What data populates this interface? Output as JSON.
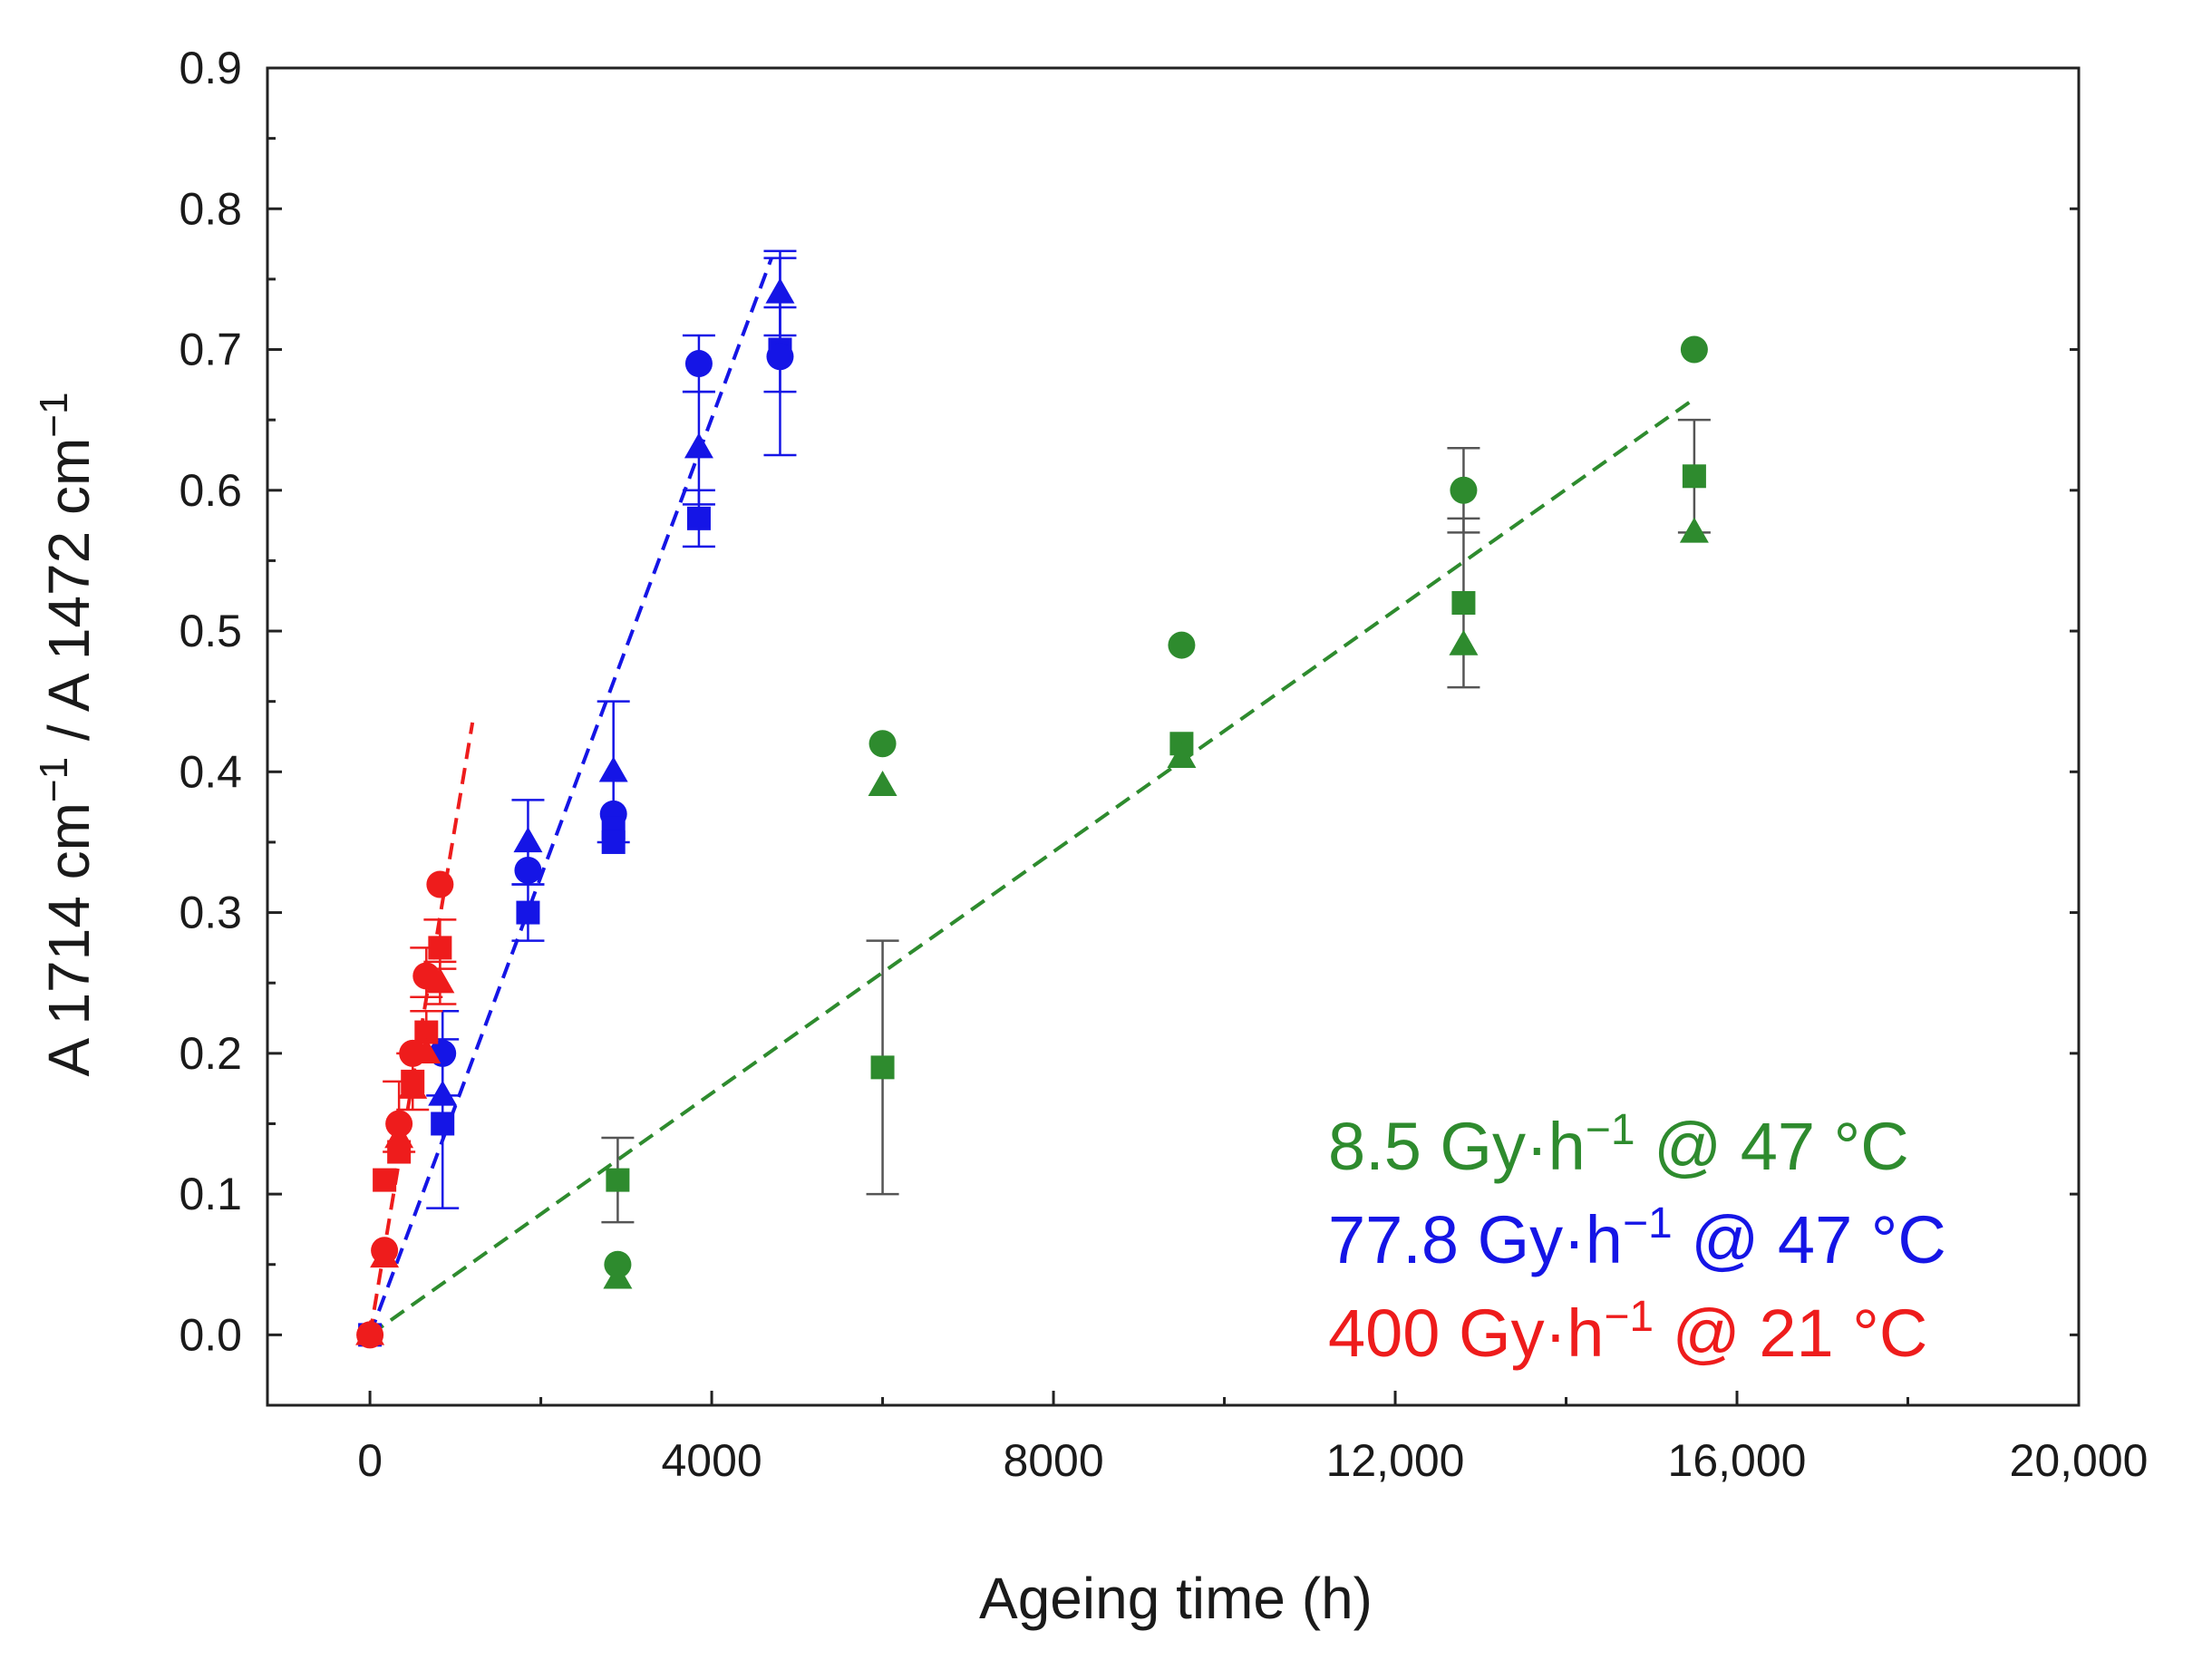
{
  "chart_data": {
    "type": "scatter",
    "xlabel": "Ageing time (h)",
    "ylabel_parts": [
      "A 1714 cm",
      "−1",
      " / A 1472 cm",
      "−1"
    ],
    "xlim": [
      -1200,
      20000
    ],
    "ylim": [
      -0.05,
      0.9
    ],
    "x_ticks": [
      0,
      4000,
      8000,
      12000,
      16000,
      20000
    ],
    "x_tick_labels": [
      "0",
      "4000",
      "8000",
      "12,000",
      "16,000",
      "20,000"
    ],
    "y_ticks": [
      0.0,
      0.1,
      0.2,
      0.3,
      0.4,
      0.5,
      0.6,
      0.7,
      0.8,
      0.9
    ],
    "y_tick_labels": [
      "0.0",
      "0.1",
      "0.2",
      "0.3",
      "0.4",
      "0.5",
      "0.6",
      "0.7",
      "0.8",
      "0.9"
    ],
    "grid": false,
    "legend_position": "bottom-right",
    "series": [
      {
        "name_parts": [
          "8.5 Gy·h",
          "−1",
          " @ 47 °C"
        ],
        "color": "#2e8b2e",
        "trend": [
          [
            0,
            0.0
          ],
          [
            15500,
            0.665
          ]
        ],
        "points": [
          {
            "x": 2900,
            "y": 0.11,
            "marker": "square",
            "err": [
              0.08,
              0.14
            ]
          },
          {
            "x": 2900,
            "y": 0.05,
            "marker": "circle"
          },
          {
            "x": 2900,
            "y": 0.04,
            "marker": "triangle"
          },
          {
            "x": 6000,
            "y": 0.42,
            "marker": "circle"
          },
          {
            "x": 6000,
            "y": 0.39,
            "marker": "triangle"
          },
          {
            "x": 6000,
            "y": 0.19,
            "marker": "square",
            "err": [
              0.1,
              0.28
            ]
          },
          {
            "x": 9500,
            "y": 0.49,
            "marker": "circle"
          },
          {
            "x": 9500,
            "y": 0.42,
            "marker": "square"
          },
          {
            "x": 9500,
            "y": 0.41,
            "marker": "triangle"
          },
          {
            "x": 12800,
            "y": 0.6,
            "marker": "circle",
            "err": [
              0.57,
              0.63
            ]
          },
          {
            "x": 12800,
            "y": 0.52,
            "marker": "square",
            "err": [
              0.46,
              0.58
            ]
          },
          {
            "x": 12800,
            "y": 0.49,
            "marker": "triangle"
          },
          {
            "x": 15500,
            "y": 0.7,
            "marker": "circle"
          },
          {
            "x": 15500,
            "y": 0.61,
            "marker": "square",
            "err": [
              0.57,
              0.65
            ]
          },
          {
            "x": 15500,
            "y": 0.57,
            "marker": "triangle"
          }
        ]
      },
      {
        "name_parts": [
          "77.8 Gy·h",
          "−1",
          " @ 47 °C"
        ],
        "color": "#1515e6",
        "trend": [
          [
            0,
            0.0
          ],
          [
            4700,
            0.765
          ]
        ],
        "points": [
          {
            "x": 0,
            "y": 0.0,
            "marker": "square"
          },
          {
            "x": 850,
            "y": 0.2,
            "marker": "circle",
            "err": [
              0.17,
              0.23
            ]
          },
          {
            "x": 850,
            "y": 0.17,
            "marker": "triangle"
          },
          {
            "x": 850,
            "y": 0.15,
            "marker": "square",
            "err": [
              0.09,
              0.21
            ]
          },
          {
            "x": 1850,
            "y": 0.35,
            "marker": "triangle",
            "err": [
              0.32,
              0.38
            ]
          },
          {
            "x": 1850,
            "y": 0.33,
            "marker": "circle"
          },
          {
            "x": 1850,
            "y": 0.3,
            "marker": "square",
            "err": [
              0.28,
              0.32
            ]
          },
          {
            "x": 2850,
            "y": 0.4,
            "marker": "triangle",
            "err": [
              0.35,
              0.45
            ]
          },
          {
            "x": 2850,
            "y": 0.37,
            "marker": "circle"
          },
          {
            "x": 2850,
            "y": 0.36,
            "marker": "square"
          },
          {
            "x": 2850,
            "y": 0.35,
            "marker": "square"
          },
          {
            "x": 3850,
            "y": 0.69,
            "marker": "circle",
            "err": [
              0.67,
              0.71
            ]
          },
          {
            "x": 3850,
            "y": 0.63,
            "marker": "triangle",
            "err": [
              0.59,
              0.67
            ]
          },
          {
            "x": 3850,
            "y": 0.58,
            "marker": "square",
            "err": [
              0.56,
              0.6
            ]
          },
          {
            "x": 4800,
            "y": 0.74,
            "marker": "triangle",
            "err": [
              0.71,
              0.77
            ]
          },
          {
            "x": 4800,
            "y": 0.7,
            "marker": "square",
            "err": [
              0.67,
              0.73
            ]
          },
          {
            "x": 4800,
            "y": 0.695,
            "marker": "circle",
            "err": [
              0.625,
              0.765
            ]
          }
        ]
      },
      {
        "name_parts": [
          "400 Gy·h",
          "−1",
          " @ 21 °C"
        ],
        "color": "#ee1c1c",
        "trend": [
          [
            0,
            0.0
          ],
          [
            1200,
            0.435
          ]
        ],
        "points": [
          {
            "x": 0,
            "y": 0.0,
            "marker": "circle"
          },
          {
            "x": 0,
            "y": 0.0,
            "marker": "triangle"
          },
          {
            "x": 170,
            "y": 0.11,
            "marker": "square"
          },
          {
            "x": 170,
            "y": 0.06,
            "marker": "circle"
          },
          {
            "x": 170,
            "y": 0.055,
            "marker": "triangle"
          },
          {
            "x": 340,
            "y": 0.15,
            "marker": "circle",
            "err": [
              0.13,
              0.18
            ]
          },
          {
            "x": 340,
            "y": 0.14,
            "marker": "triangle"
          },
          {
            "x": 340,
            "y": 0.13,
            "marker": "square"
          },
          {
            "x": 500,
            "y": 0.2,
            "marker": "circle"
          },
          {
            "x": 500,
            "y": 0.18,
            "marker": "square",
            "err": [
              0.16,
              0.2
            ]
          },
          {
            "x": 500,
            "y": 0.175,
            "marker": "triangle"
          },
          {
            "x": 660,
            "y": 0.255,
            "marker": "circle",
            "err": [
              0.24,
              0.275
            ]
          },
          {
            "x": 660,
            "y": 0.215,
            "marker": "square",
            "err": [
              0.2,
              0.23
            ]
          },
          {
            "x": 660,
            "y": 0.2,
            "marker": "triangle"
          },
          {
            "x": 820,
            "y": 0.32,
            "marker": "circle"
          },
          {
            "x": 820,
            "y": 0.275,
            "marker": "square",
            "err": [
              0.26,
              0.295
            ]
          },
          {
            "x": 820,
            "y": 0.25,
            "marker": "triangle",
            "err": [
              0.235,
              0.265
            ]
          }
        ]
      }
    ]
  }
}
